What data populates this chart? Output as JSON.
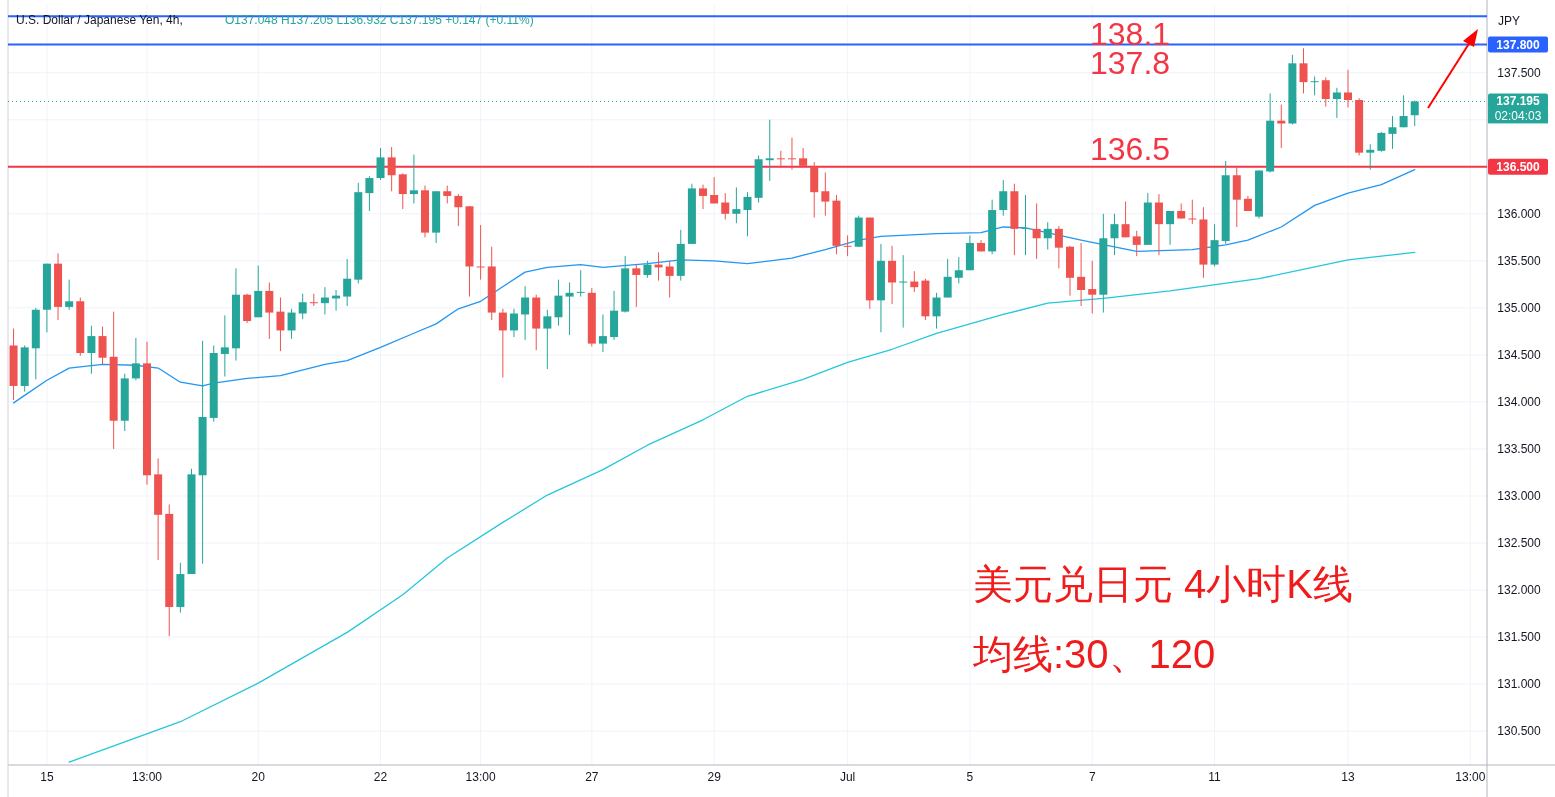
{
  "chart_data": {
    "type": "candlestick",
    "title": "U.S. Dollar / Japanese Yen, 4h,",
    "subtitle": "O137.048 H137.205 L136.932 C137.195 +0.147 (+0.11%)",
    "ylabel": "JPY",
    "categories": [
      null,
      null,
      null,
      "15",
      null,
      null,
      null,
      null,
      null,
      null,
      null,
      null,
      "13:00",
      null,
      null,
      null,
      null,
      null,
      null,
      null,
      null,
      null,
      "20",
      null,
      null,
      null,
      null,
      null,
      null,
      null,
      null,
      null,
      null,
      "22",
      null,
      null,
      null,
      null,
      null,
      null,
      null,
      null,
      "13:00",
      null,
      null,
      null,
      null,
      null,
      null,
      null,
      null,
      null,
      "27",
      null,
      null,
      null,
      null,
      null,
      null,
      null,
      null,
      null,
      null,
      "29",
      null,
      null,
      null,
      null,
      null,
      null,
      null,
      null,
      null,
      null,
      null,
      "Jul",
      null,
      null,
      null,
      null,
      null,
      null,
      null,
      null,
      null,
      null,
      "5",
      null,
      null,
      null,
      null,
      null,
      null,
      null,
      null,
      null,
      null,
      "7",
      null,
      null,
      null,
      null,
      null,
      null,
      null,
      null,
      null,
      null,
      "11",
      null,
      null,
      null,
      null,
      null,
      null,
      null,
      null,
      null,
      null,
      null,
      "13",
      null,
      null,
      null,
      null,
      null,
      null,
      null,
      null,
      null,
      null,
      "13:00",
      null
    ],
    "ohlc": [
      [
        134.6,
        134.78,
        134.02,
        134.17
      ],
      [
        134.17,
        134.6,
        134.11,
        134.58
      ],
      [
        134.57,
        135.0,
        134.24,
        134.98
      ],
      [
        134.98,
        135.47,
        134.74,
        135.47
      ],
      [
        135.47,
        135.58,
        134.87,
        135.01
      ],
      [
        135.01,
        135.3,
        134.98,
        135.07
      ],
      [
        135.07,
        135.11,
        134.49,
        134.52
      ],
      [
        134.52,
        134.81,
        134.3,
        134.7
      ],
      [
        134.7,
        134.8,
        134.4,
        134.47
      ],
      [
        134.48,
        134.96,
        133.5,
        133.8
      ],
      [
        133.8,
        134.3,
        133.69,
        134.25
      ],
      [
        134.25,
        134.68,
        134.23,
        134.41
      ],
      [
        134.41,
        134.64,
        133.12,
        133.22
      ],
      [
        133.23,
        133.4,
        132.32,
        132.8
      ],
      [
        132.81,
        132.91,
        131.51,
        131.82
      ],
      [
        131.82,
        132.29,
        131.76,
        132.17
      ],
      [
        132.17,
        133.29,
        132.17,
        133.23
      ],
      [
        133.22,
        134.65,
        132.28,
        133.84
      ],
      [
        133.83,
        134.6,
        133.79,
        134.52
      ],
      [
        134.51,
        134.92,
        134.27,
        134.58
      ],
      [
        134.57,
        135.42,
        134.44,
        135.14
      ],
      [
        135.14,
        135.15,
        134.84,
        134.86
      ],
      [
        134.9,
        135.45,
        134.9,
        135.18
      ],
      [
        135.18,
        135.27,
        134.67,
        134.95
      ],
      [
        134.96,
        135.11,
        134.54,
        134.76
      ],
      [
        134.76,
        134.99,
        134.67,
        134.95
      ],
      [
        134.94,
        135.15,
        134.88,
        135.06
      ],
      [
        135.06,
        135.15,
        135.02,
        135.05
      ],
      [
        135.05,
        135.22,
        134.93,
        135.11
      ],
      [
        135.1,
        135.19,
        134.97,
        135.13
      ],
      [
        135.12,
        135.52,
        135.02,
        135.31
      ],
      [
        135.3,
        136.33,
        135.26,
        136.23
      ],
      [
        136.22,
        136.4,
        136.03,
        136.38
      ],
      [
        136.38,
        136.7,
        136.36,
        136.6
      ],
      [
        136.6,
        136.71,
        136.24,
        136.41
      ],
      [
        136.42,
        136.43,
        136.05,
        136.21
      ],
      [
        136.21,
        136.63,
        136.11,
        136.25
      ],
      [
        136.25,
        136.3,
        135.75,
        135.8
      ],
      [
        135.8,
        136.24,
        135.69,
        136.24
      ],
      [
        136.24,
        136.3,
        136.11,
        136.19
      ],
      [
        136.19,
        136.21,
        135.87,
        136.07
      ],
      [
        136.08,
        136.08,
        135.12,
        135.44
      ],
      [
        135.44,
        135.88,
        135.3,
        135.43
      ],
      [
        135.44,
        135.65,
        134.87,
        134.95
      ],
      [
        134.95,
        134.99,
        134.26,
        134.76
      ],
      [
        134.76,
        134.99,
        134.69,
        134.94
      ],
      [
        134.93,
        135.23,
        134.66,
        135.11
      ],
      [
        135.11,
        135.14,
        134.55,
        134.78
      ],
      [
        134.78,
        134.98,
        134.35,
        134.91
      ],
      [
        134.9,
        135.3,
        134.81,
        135.13
      ],
      [
        135.12,
        135.27,
        134.71,
        135.16
      ],
      [
        135.16,
        135.4,
        135.12,
        135.17
      ],
      [
        135.16,
        135.21,
        134.59,
        134.62
      ],
      [
        134.62,
        134.93,
        134.53,
        134.7
      ],
      [
        134.69,
        135.18,
        134.66,
        134.97
      ],
      [
        134.96,
        135.55,
        134.95,
        135.42
      ],
      [
        135.42,
        135.46,
        135.01,
        135.35
      ],
      [
        135.35,
        135.5,
        135.32,
        135.46
      ],
      [
        135.46,
        135.59,
        135.29,
        135.43
      ],
      [
        135.44,
        135.5,
        135.11,
        135.34
      ],
      [
        135.34,
        135.83,
        135.29,
        135.68
      ],
      [
        135.68,
        136.32,
        135.68,
        136.27
      ],
      [
        136.27,
        136.31,
        136.05,
        136.19
      ],
      [
        136.2,
        136.39,
        136.11,
        136.11
      ],
      [
        136.12,
        136.22,
        135.94,
        136.0
      ],
      [
        136.0,
        136.28,
        135.9,
        136.05
      ],
      [
        136.04,
        136.23,
        135.76,
        136.18
      ],
      [
        136.17,
        136.62,
        136.12,
        136.58
      ],
      [
        136.57,
        137.0,
        136.35,
        136.59
      ],
      [
        136.59,
        136.67,
        136.49,
        136.58
      ],
      [
        136.59,
        136.81,
        136.47,
        136.58
      ],
      [
        136.59,
        136.7,
        136.51,
        136.51
      ],
      [
        136.5,
        136.55,
        135.96,
        136.23
      ],
      [
        136.24,
        136.44,
        135.98,
        136.13
      ],
      [
        136.14,
        136.2,
        135.57,
        135.66
      ],
      [
        135.66,
        135.77,
        135.55,
        135.65
      ],
      [
        135.65,
        135.98,
        135.65,
        135.96
      ],
      [
        135.96,
        135.96,
        134.99,
        135.08
      ],
      [
        135.08,
        135.68,
        134.74,
        135.5
      ],
      [
        135.5,
        135.66,
        135.04,
        135.27
      ],
      [
        135.27,
        135.56,
        134.79,
        135.28
      ],
      [
        135.28,
        135.39,
        135.17,
        135.22
      ],
      [
        135.29,
        135.31,
        134.87,
        134.91
      ],
      [
        134.91,
        135.16,
        134.78,
        135.11
      ],
      [
        135.11,
        135.52,
        135.11,
        135.33
      ],
      [
        135.32,
        135.54,
        135.26,
        135.4
      ],
      [
        135.4,
        135.77,
        135.4,
        135.69
      ],
      [
        135.69,
        135.72,
        135.6,
        135.6
      ],
      [
        135.6,
        136.15,
        135.57,
        136.04
      ],
      [
        136.04,
        136.36,
        135.98,
        136.24
      ],
      [
        136.24,
        136.32,
        135.56,
        135.84
      ],
      [
        135.84,
        136.2,
        135.56,
        135.85
      ],
      [
        135.84,
        136.11,
        135.52,
        135.74
      ],
      [
        135.74,
        135.91,
        135.62,
        135.84
      ],
      [
        135.84,
        135.87,
        135.42,
        135.64
      ],
      [
        135.65,
        135.66,
        135.13,
        135.32
      ],
      [
        135.33,
        135.69,
        135.02,
        135.19
      ],
      [
        135.2,
        135.5,
        134.94,
        135.14
      ],
      [
        135.14,
        136.0,
        134.95,
        135.74
      ],
      [
        135.74,
        136.0,
        135.56,
        135.89
      ],
      [
        135.89,
        136.13,
        135.75,
        135.75
      ],
      [
        135.76,
        135.82,
        135.55,
        135.67
      ],
      [
        135.67,
        136.22,
        135.67,
        136.12
      ],
      [
        136.12,
        136.21,
        135.56,
        135.89
      ],
      [
        135.89,
        136.03,
        135.67,
        136.03
      ],
      [
        136.03,
        136.11,
        135.95,
        135.95
      ],
      [
        135.95,
        136.15,
        135.89,
        135.94
      ],
      [
        135.94,
        136.07,
        135.32,
        135.46
      ],
      [
        135.46,
        135.89,
        135.44,
        135.72
      ],
      [
        135.71,
        136.56,
        135.68,
        136.41
      ],
      [
        136.41,
        136.5,
        135.86,
        136.15
      ],
      [
        136.16,
        136.19,
        136.03,
        136.03
      ],
      [
        135.97,
        136.46,
        135.95,
        136.46
      ],
      [
        136.45,
        137.28,
        136.44,
        136.99
      ],
      [
        136.99,
        137.16,
        136.7,
        136.96
      ],
      [
        136.96,
        137.69,
        136.95,
        137.6
      ],
      [
        137.6,
        137.76,
        137.28,
        137.4
      ],
      [
        137.4,
        137.46,
        137.26,
        137.41
      ],
      [
        137.42,
        137.45,
        137.14,
        137.22
      ],
      [
        137.22,
        137.34,
        137.02,
        137.29
      ],
      [
        137.29,
        137.53,
        137.13,
        137.21
      ],
      [
        137.21,
        137.23,
        136.62,
        136.65
      ],
      [
        136.65,
        136.74,
        136.47,
        136.68
      ],
      [
        136.67,
        136.87,
        136.66,
        136.86
      ],
      [
        136.85,
        137.04,
        136.69,
        136.92
      ],
      [
        136.92,
        137.26,
        136.92,
        137.04
      ],
      [
        137.048,
        137.205,
        136.932,
        137.195
      ],
      null,
      null,
      null,
      null,
      null,
      null
    ],
    "colors": [
      "#ef5350",
      "#26a69a",
      "#26a69a",
      "#26a69a",
      "#ef5350",
      "#26a69a",
      "#ef5350",
      "#26a69a",
      "#ef5350",
      "#ef5350",
      "#26a69a",
      "#26a69a",
      "#ef5350",
      "#ef5350",
      "#ef5350",
      "#26a69a",
      "#26a69a",
      "#26a69a",
      "#26a69a",
      "#26a69a",
      "#26a69a",
      "#ef5350",
      "#26a69a",
      "#ef5350",
      "#ef5350",
      "#26a69a",
      "#26a69a",
      "#ef5350",
      "#26a69a",
      "#26a69a",
      "#26a69a",
      "#26a69a",
      "#26a69a",
      "#26a69a",
      "#ef5350",
      "#ef5350",
      "#26a69a",
      "#ef5350",
      "#26a69a",
      "#ef5350",
      "#ef5350",
      "#ef5350",
      "#ef5350",
      "#ef5350",
      "#ef5350",
      "#26a69a",
      "#26a69a",
      "#ef5350",
      "#26a69a",
      "#26a69a",
      "#26a69a",
      "#26a69a",
      "#ef5350",
      "#26a69a",
      "#26a69a",
      "#26a69a",
      "#ef5350",
      "#26a69a",
      "#ef5350",
      "#ef5350",
      "#26a69a",
      "#26a69a",
      "#ef5350",
      "#ef5350",
      "#ef5350",
      "#26a69a",
      "#26a69a",
      "#26a69a",
      "#26a69a",
      "#ef5350",
      "#ef5350",
      "#ef5350",
      "#ef5350",
      "#ef5350",
      "#ef5350",
      "#ef5350",
      "#26a69a",
      "#ef5350",
      "#26a69a",
      "#ef5350",
      "#26a69a",
      "#ef5350",
      "#ef5350",
      "#26a69a",
      "#26a69a",
      "#26a69a",
      "#26a69a",
      "#ef5350",
      "#26a69a",
      "#26a69a",
      "#ef5350",
      "#26a69a",
      "#ef5350",
      "#26a69a",
      "#ef5350",
      "#ef5350",
      "#ef5350",
      "#ef5350",
      "#26a69a",
      "#26a69a",
      "#ef5350",
      "#ef5350",
      "#26a69a",
      "#ef5350",
      "#26a69a",
      "#ef5350",
      "#ef5350",
      "#ef5350",
      "#26a69a",
      "#26a69a",
      "#ef5350",
      "#ef5350",
      "#26a69a",
      "#26a69a",
      "#ef5350",
      "#26a69a",
      "#ef5350",
      "#26a69a",
      "#ef5350",
      "#26a69a",
      "#ef5350",
      "#ef5350",
      "#26a69a",
      "#26a69a",
      "#26a69a",
      "#26a69a",
      "#26a69a",
      null,
      null,
      null,
      null,
      null,
      null
    ],
    "series": [
      {
        "type": "line",
        "color": "#2196f3",
        "values": [
          133.99,
          134.07,
          null,
          134.23,
          null,
          134.36,
          null,
          null,
          134.4,
          null,
          null,
          134.39,
          null,
          134.36,
          null,
          134.21,
          null,
          134.17,
          134.2,
          null,
          null,
          134.25,
          null,
          null,
          134.28,
          null,
          null,
          null,
          134.4,
          null,
          134.44,
          null,
          null,
          134.58,
          null,
          null,
          134.73,
          null,
          134.83,
          null,
          134.99,
          null,
          135.07,
          null,
          null,
          null,
          135.38,
          null,
          135.43,
          null,
          null,
          135.46,
          null,
          135.43,
          null,
          null,
          null,
          135.47,
          null,
          null,
          135.51,
          null,
          null,
          135.5,
          null,
          null,
          135.47,
          null,
          null,
          null,
          135.53,
          null,
          null,
          135.62,
          null,
          null,
          135.72,
          null,
          135.76,
          null,
          null,
          null,
          null,
          135.79,
          null,
          null,
          null,
          135.8,
          null,
          135.86,
          null,
          135.85,
          null,
          null,
          null,
          null,
          135.72,
          null,
          null,
          null,
          null,
          135.6,
          null,
          null,
          null,
          null,
          135.62,
          null,
          null,
          135.67,
          null,
          135.72,
          null,
          null,
          135.86,
          null,
          null,
          136.09,
          null,
          null,
          136.22,
          null,
          null,
          136.31,
          null,
          null,
          136.47,
          null,
          null,
          null,
          null,
          null,
          null
        ]
      },
      {
        "type": "line",
        "color": "#26c6da",
        "values": [
          null,
          null,
          null,
          null,
          null,
          130.17,
          null,
          null,
          null,
          null,
          null,
          null,
          null,
          null,
          null,
          130.6,
          null,
          null,
          null,
          null,
          null,
          null,
          131.01,
          null,
          null,
          null,
          null,
          null,
          null,
          null,
          131.55,
          null,
          null,
          null,
          null,
          131.95,
          null,
          null,
          null,
          132.34,
          null,
          null,
          null,
          null,
          132.72,
          null,
          null,
          null,
          133.01,
          null,
          null,
          null,
          null,
          133.28,
          null,
          null,
          null,
          133.54,
          null,
          null,
          null,
          null,
          133.81,
          null,
          null,
          null,
          134.06,
          null,
          null,
          null,
          null,
          134.24,
          null,
          null,
          null,
          134.42,
          null,
          null,
          null,
          134.56,
          null,
          null,
          null,
          134.73,
          null,
          null,
          null,
          null,
          null,
          134.93,
          null,
          null,
          null,
          135.05,
          null,
          null,
          null,
          null,
          135.1,
          null,
          null,
          null,
          null,
          null,
          135.18,
          null,
          null,
          null,
          null,
          null,
          null,
          null,
          135.31,
          null,
          null,
          null,
          null,
          null,
          null,
          null,
          135.51,
          null,
          null,
          null,
          null,
          null,
          135.59,
          null,
          null,
          null,
          null,
          null,
          null
        ]
      }
    ],
    "ylim": [
      130.14,
      138.22
    ],
    "yticks": [
      {
        "value": 130.5,
        "label": "130.500"
      },
      {
        "value": 131,
        "label": "131.000"
      },
      {
        "value": 131.5,
        "label": "131.500"
      },
      {
        "value": 132,
        "label": "132.000"
      },
      {
        "value": 132.5,
        "label": "132.500"
      },
      {
        "value": 133,
        "label": "133.000"
      },
      {
        "value": 133.5,
        "label": "133.500"
      },
      {
        "value": 134,
        "label": "134.000"
      },
      {
        "value": 134.5,
        "label": "134.500"
      },
      {
        "value": 135,
        "label": "135.000"
      },
      {
        "value": 135.5,
        "label": "135.500"
      },
      {
        "value": 136,
        "label": "136.000"
      },
      {
        "value": 136.5,
        "label": "136.500"
      },
      {
        "value": 137,
        "label": null
      },
      {
        "value": 137.5,
        "label": "137.500"
      }
    ],
    "grid": true,
    "ref_lines": [
      {
        "axis": "y",
        "value": 138.1,
        "label": null,
        "color": "#2962ff"
      },
      {
        "axis": "y",
        "value": 137.8,
        "label": "137.800",
        "color": "#2962ff"
      },
      {
        "axis": "y",
        "value": 137.195,
        "label": "137.195",
        "color": "#26a69a",
        "line_style": "dotted"
      },
      {
        "axis": "y",
        "value": 136.5,
        "label": "136.500",
        "color": "#f23645"
      }
    ],
    "annotations": [
      {
        "text": "138.1",
        "y": 138.1
      },
      {
        "text": "137.8",
        "y": 137.8
      },
      {
        "text": "136.5",
        "y": 136.5
      },
      "美元兑日元 4小时K线",
      "均线:30、120",
      "02:04:03"
    ]
  }
}
